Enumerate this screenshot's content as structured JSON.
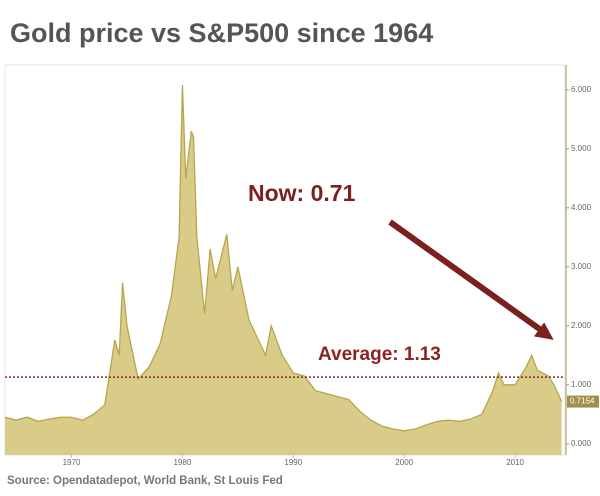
{
  "chart_data": {
    "type": "area",
    "title": "Gold price vs S&P500 since 1964",
    "source": "Source: Opendatadepot, World Bank, St Louis Fed",
    "color": "#d9cc88",
    "line_color": "#b7a54e",
    "x": [
      1964,
      1965,
      1966,
      1967,
      1968,
      1969,
      1970,
      1971,
      1972,
      1973,
      1973.9,
      1974.3,
      1974.6,
      1975,
      1976,
      1977,
      1978,
      1979,
      1979.7,
      1980,
      1980.3,
      1980.8,
      1981,
      1981.3,
      1982,
      1982.5,
      1983,
      1984,
      1984.5,
      1985,
      1986,
      1987,
      1987.5,
      1988,
      1989,
      1990,
      1991,
      1992,
      1993,
      1994,
      1995,
      1996,
      1997,
      1998,
      1999,
      2000,
      2001,
      2002,
      2003,
      2004,
      2005,
      2006,
      2007,
      2008,
      2008.5,
      2009,
      2010,
      2011,
      2011.5,
      2012,
      2013,
      2013.5,
      2014.2
    ],
    "values": [
      0.45,
      0.4,
      0.45,
      0.38,
      0.42,
      0.45,
      0.45,
      0.4,
      0.5,
      0.66,
      1.76,
      1.5,
      2.73,
      2.0,
      1.1,
      1.3,
      1.7,
      2.5,
      3.5,
      6.08,
      4.5,
      5.3,
      5.2,
      3.5,
      2.2,
      3.3,
      2.8,
      3.55,
      2.6,
      3.0,
      2.1,
      1.7,
      1.5,
      2.0,
      1.5,
      1.2,
      1.15,
      0.9,
      0.85,
      0.8,
      0.75,
      0.55,
      0.4,
      0.3,
      0.25,
      0.22,
      0.25,
      0.32,
      0.38,
      0.4,
      0.38,
      0.42,
      0.5,
      0.9,
      1.2,
      1.0,
      1.0,
      1.3,
      1.5,
      1.25,
      1.15,
      1.0,
      0.7154
    ],
    "xlim": [
      1964,
      2014.5
    ],
    "ylim": [
      -0.19,
      6.42
    ],
    "xticks": [
      1970,
      1980,
      1990,
      2000,
      2010
    ],
    "yticks": [
      {
        "value": 0,
        "label": "0.000"
      },
      {
        "value": 1,
        "label": "1.000"
      },
      {
        "value": 2,
        "label": "2.000"
      },
      {
        "value": 3,
        "label": "3.000"
      },
      {
        "value": 4,
        "label": "4.000"
      },
      {
        "value": 5,
        "label": "5.000"
      },
      {
        "value": 6,
        "label": "6.000"
      }
    ],
    "average": {
      "value": 1.13,
      "label": "Average: 1.13",
      "color": "#8b2323"
    },
    "now": {
      "value": 0.71,
      "label": "Now: 0.71",
      "color": "#7b1f1f"
    }
  }
}
